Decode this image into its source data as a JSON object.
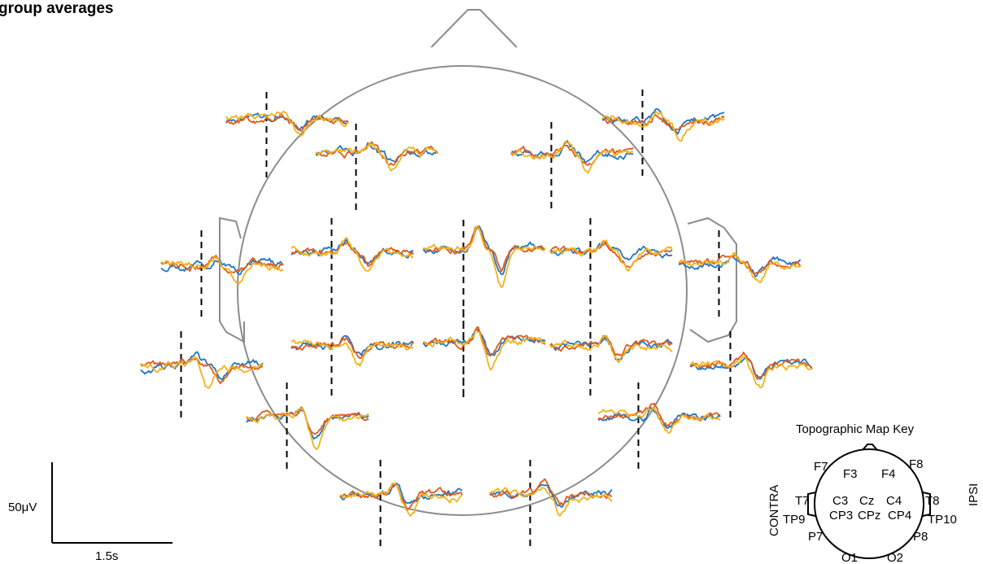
{
  "title": "group averages",
  "colors": {
    "blue": "#1f77c0",
    "orange": "#e05a1c",
    "yellow": "#f2b11c",
    "outline": "#8c8c8c"
  },
  "scale_bar": {
    "voltage_label": "50μV",
    "time_label": "1.5s"
  },
  "key": {
    "title": "Topographic Map Key",
    "contra_label": "CONTRA",
    "ipsi_label": "IPSI",
    "electrodes": [
      "F7",
      "F3",
      "F4",
      "F8",
      "T7",
      "C3",
      "Cz",
      "C4",
      "T8",
      "CP3",
      "CPz",
      "CP4",
      "TP9",
      "TP10",
      "P7",
      "P8",
      "O1",
      "O2"
    ]
  },
  "chart_data": {
    "type": "line",
    "title": "group averages",
    "series_colors": [
      "#1f77c0",
      "#e05a1c",
      "#f2b11c"
    ],
    "channels": [
      {
        "label": "F7",
        "seed": 11,
        "amp": 1.0
      },
      {
        "label": "F3",
        "seed": 12,
        "amp": 1.0
      },
      {
        "label": "F4",
        "seed": 13,
        "amp": 1.0
      },
      {
        "label": "F8",
        "seed": 14,
        "amp": 1.0
      },
      {
        "label": "T7",
        "seed": 15,
        "amp": 1.0
      },
      {
        "label": "C3",
        "seed": 16,
        "amp": 1.2
      },
      {
        "label": "Cz",
        "seed": 17,
        "amp": 2.4
      },
      {
        "label": "C4",
        "seed": 18,
        "amp": 1.1
      },
      {
        "label": "T8",
        "seed": 19,
        "amp": 1.0
      },
      {
        "label": "TP9",
        "seed": 20,
        "amp": 1.3
      },
      {
        "label": "CP3",
        "seed": 21,
        "amp": 1.0
      },
      {
        "label": "CPz",
        "seed": 22,
        "amp": 1.5
      },
      {
        "label": "CP4",
        "seed": 23,
        "amp": 1.0
      },
      {
        "label": "TP10",
        "seed": 24,
        "amp": 1.3
      },
      {
        "label": "P7",
        "seed": 25,
        "amp": 1.5
      },
      {
        "label": "P8",
        "seed": 26,
        "amp": 1.1
      },
      {
        "label": "O1",
        "seed": 27,
        "amp": 1.3
      },
      {
        "label": "O2",
        "seed": 28,
        "amp": 1.1
      }
    ]
  }
}
